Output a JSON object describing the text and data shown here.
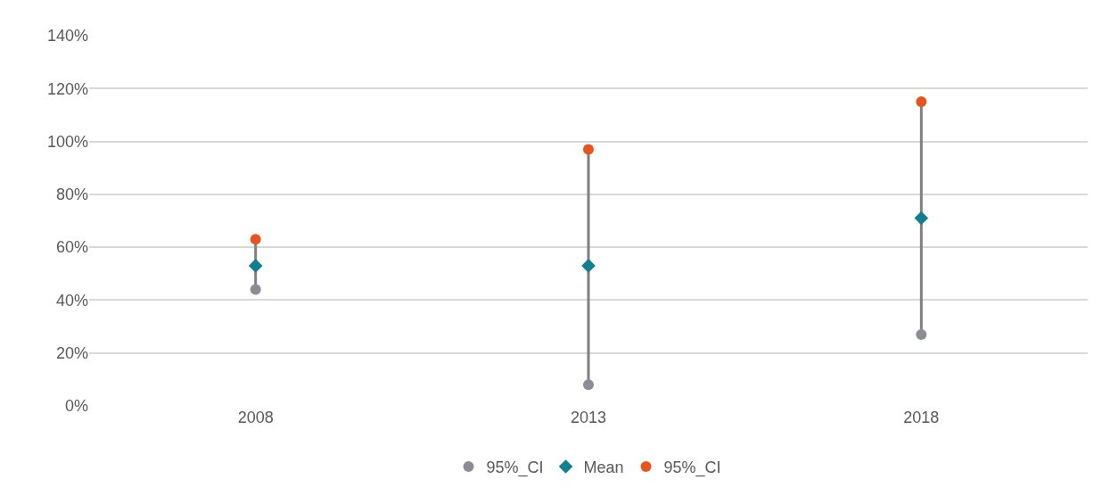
{
  "chart_data": {
    "type": "scatter",
    "categories": [
      "2008",
      "2013",
      "2018"
    ],
    "series": [
      {
        "name": "95%_CI",
        "color": "#8c8c96",
        "marker": "circle",
        "values": [
          44,
          8,
          27
        ]
      },
      {
        "name": "Mean",
        "color": "#10808f",
        "marker": "diamond",
        "values": [
          53,
          53,
          71
        ]
      },
      {
        "name": "95%_CI",
        "color": "#e8541e",
        "marker": "circle",
        "values": [
          63,
          97,
          115
        ]
      }
    ],
    "ylim": [
      0,
      140
    ],
    "yticks": [
      {
        "value": 0,
        "label": "0%"
      },
      {
        "value": 20,
        "label": "20%"
      },
      {
        "value": 40,
        "label": "40%"
      },
      {
        "value": 60,
        "label": "60%"
      },
      {
        "value": 80,
        "label": "80%"
      },
      {
        "value": 100,
        "label": "100%"
      },
      {
        "value": 120,
        "label": "120%"
      },
      {
        "value": 140,
        "label": "140%"
      }
    ],
    "grid": "y",
    "legend": "bottom"
  }
}
